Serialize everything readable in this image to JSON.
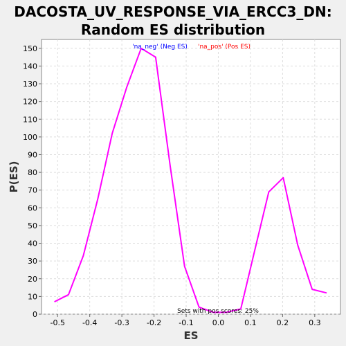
{
  "title": {
    "line1": "DACOSTA_UV_RESPONSE_VIA_ERCC3_DN:",
    "line2": "Random ES distribution"
  },
  "chart_data": {
    "type": "line",
    "xlabel": "ES",
    "ylabel": "P(ES)",
    "xlim": [
      -0.55,
      0.38
    ],
    "ylim": [
      0,
      155
    ],
    "xticks": [
      -0.5,
      -0.4,
      -0.3,
      -0.2,
      -0.1,
      0.0,
      0.1,
      0.2,
      0.3
    ],
    "xtick_labels": [
      "-0.5",
      "-0.4",
      "-0.3",
      "-0.2",
      "-0.1",
      "0.0",
      "0.1",
      "0.2",
      "0.3"
    ],
    "yticks": [
      0,
      10,
      20,
      30,
      40,
      50,
      60,
      70,
      80,
      90,
      100,
      110,
      120,
      130,
      140,
      150
    ],
    "grid": true,
    "legend": [
      {
        "label": "'na_neg' (Neg ES)",
        "color": "#0000ff"
      },
      {
        "label": "'na_pos' (Pos ES)",
        "color": "#ff0000"
      }
    ],
    "annotation": "Sets with pos scores: 25%",
    "series": [
      {
        "color": "#ff00ff",
        "x": [
          -0.51,
          -0.466,
          -0.42,
          -0.375,
          -0.33,
          -0.285,
          -0.24,
          -0.195,
          -0.15,
          -0.105,
          -0.06,
          -0.015,
          0.025,
          0.07,
          0.112,
          0.157,
          0.202,
          0.247,
          0.292,
          0.337
        ],
        "y": [
          7,
          11,
          33,
          65,
          102,
          128,
          150,
          145,
          84,
          27,
          4,
          1,
          1,
          3,
          35,
          69,
          77,
          39,
          14,
          12
        ]
      }
    ]
  }
}
